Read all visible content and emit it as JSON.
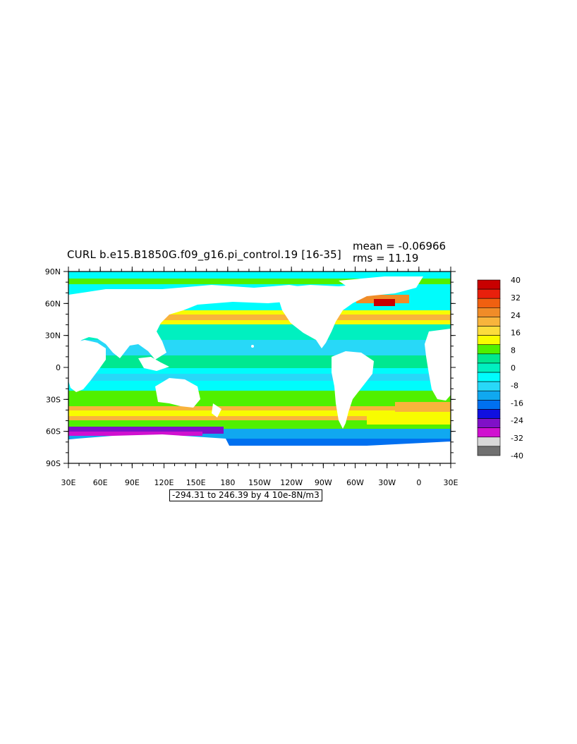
{
  "title": "CURL b.e15.B1850G.f09_g16.pi_control.19 [16-35]",
  "stats": {
    "mean": "mean = -0.06966",
    "rms": "rms = 11.19"
  },
  "latitude_labels": [
    "90N",
    "60N",
    "30N",
    "0",
    "30S",
    "60S",
    "90S"
  ],
  "longitude_labels": [
    "30E",
    "60E",
    "90E",
    "120E",
    "150E",
    "180",
    "150W",
    "120W",
    "90W",
    "60W",
    "30W",
    "0",
    "30E"
  ],
  "range_label": "-294.31 to 246.39 by 4 10e-8N/m3",
  "colorbar": {
    "labels": [
      "40",
      "32",
      "24",
      "16",
      "8",
      "0",
      "-8",
      "-16",
      "-24",
      "-32",
      "-40"
    ],
    "colors": [
      "#c80000",
      "#e8200c",
      "#f06010",
      "#f08c28",
      "#f8b43c",
      "#fcdc3c",
      "#f8fc00",
      "#50f000",
      "#00e890",
      "#00f0c0",
      "#00fcfc",
      "#28d8f8",
      "#10a8f0",
      "#0070f0",
      "#1010e0",
      "#8010c8",
      "#d010d0",
      "#d8d8d8",
      "#707070"
    ]
  }
}
